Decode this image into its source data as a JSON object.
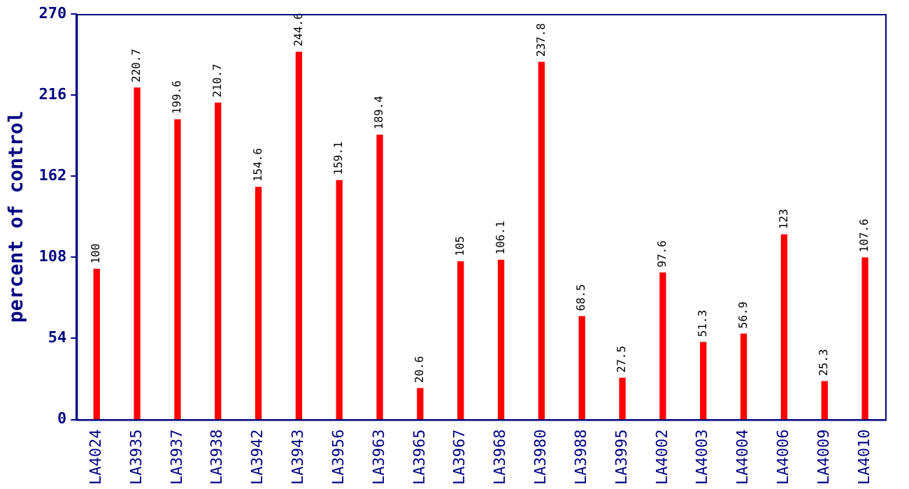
{
  "chart_data": {
    "type": "bar",
    "ylabel": "percent of control",
    "categories": [
      "LA4024",
      "LA3935",
      "LA3937",
      "LA3938",
      "LA3942",
      "LA3943",
      "LA3956",
      "LA3963",
      "LA3965",
      "LA3967",
      "LA3968",
      "LA3980",
      "LA3988",
      "LA3995",
      "LA4002",
      "LA4003",
      "LA4004",
      "LA4006",
      "LA4009",
      "LA4010"
    ],
    "values": [
      100,
      220.7,
      199.6,
      210.7,
      154.6,
      244.6,
      159.1,
      189.4,
      20.6,
      105,
      106.1,
      237.8,
      68.5,
      27.5,
      97.6,
      51.3,
      56.9,
      123,
      25.3,
      107.6
    ],
    "color": "#ff0000",
    "ylim": [
      0,
      270
    ],
    "yticks": [
      0,
      54,
      108,
      162,
      216,
      270
    ],
    "grid": false,
    "legend": false,
    "data_labels": true
  }
}
